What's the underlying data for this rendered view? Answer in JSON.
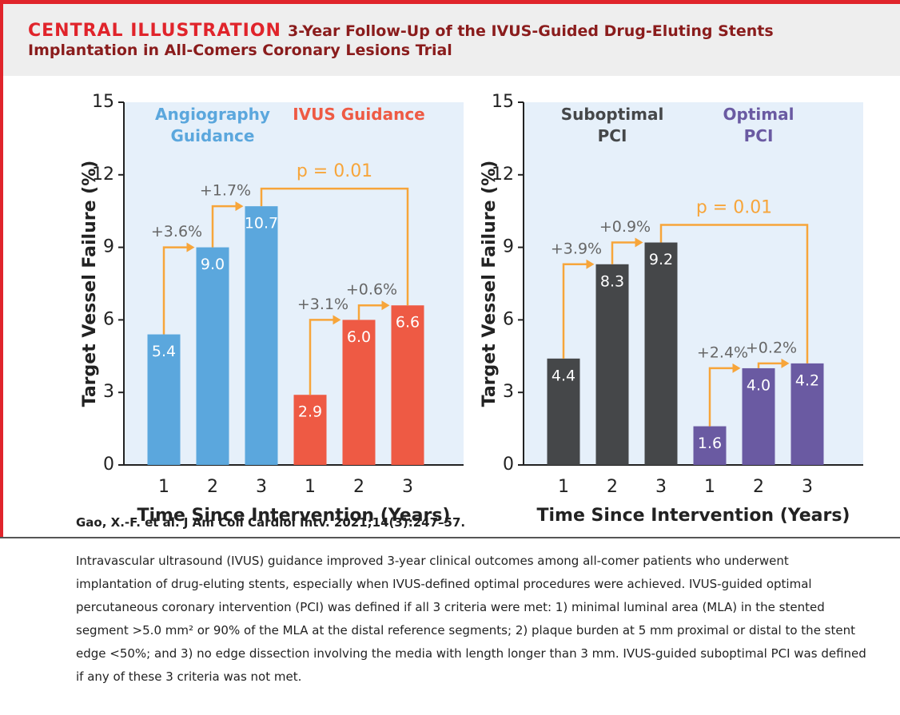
{
  "header": {
    "label": "CENTRAL ILLUSTRATION",
    "title": "3-Year Follow-Up of the IVUS-Guided Drug-Eluting Stents Implantation in All-Comers Coronary Lesions Trial"
  },
  "chart_data": [
    {
      "type": "bar",
      "y_label": "Target Vessel Failure (%)",
      "x_label": "Time Since Intervention (Years)",
      "categories": [
        "1",
        "2",
        "3",
        "1",
        "2",
        "3"
      ],
      "series": [
        {
          "name": "Angiography Guidance",
          "color": "#5ba7dd",
          "values": [
            5.4,
            9.0,
            10.7,
            null,
            null,
            null
          ],
          "value_labels": [
            "5.4",
            "9.0",
            "10.7",
            null,
            null,
            null
          ]
        },
        {
          "name": "IVUS Guidance",
          "color": "#ee5a44",
          "values": [
            null,
            null,
            null,
            2.9,
            6.0,
            6.6
          ],
          "value_labels": [
            null,
            null,
            null,
            "2.9",
            "6.0",
            "6.6"
          ]
        }
      ],
      "ylim": [
        0,
        15
      ],
      "yticks": [
        0,
        3,
        6,
        9,
        12,
        15
      ],
      "increments": [
        "+3.6%",
        "+1.7%",
        "+3.1%",
        "+0.6%"
      ],
      "p_value": "p = 0.01",
      "annotation_color": "#f7a53a",
      "background": "#e6f0fa"
    },
    {
      "type": "bar",
      "y_label": "Target Vessel Failure (%)",
      "x_label": "Time Since Intervention (Years)",
      "categories": [
        "1",
        "2",
        "3",
        "1",
        "2",
        "3"
      ],
      "series": [
        {
          "name": "Suboptimal PCI",
          "color": "#454749",
          "values": [
            4.4,
            8.3,
            9.2,
            null,
            null,
            null
          ],
          "value_labels": [
            "4.4",
            "8.3",
            "9.2",
            null,
            null,
            null
          ]
        },
        {
          "name": "Optimal PCI",
          "color": "#6a5aa2",
          "values": [
            null,
            null,
            null,
            1.6,
            4.0,
            4.2
          ],
          "value_labels": [
            null,
            null,
            null,
            "1.6",
            "4.0",
            "4.2"
          ]
        }
      ],
      "ylim": [
        0,
        15
      ],
      "yticks": [
        0,
        3,
        6,
        9,
        12,
        15
      ],
      "increments": [
        "+3.9%",
        "+0.9%",
        "+2.4%",
        "+0.2%"
      ],
      "p_value": "p = 0.01",
      "annotation_color": "#f7a53a",
      "background": "#e6f0fa"
    }
  ],
  "citation": "Gao, X.-F. et al. J Am Coll Cardiol Intv. 2021;14(3):247–57.",
  "caption": "Intravascular ultrasound (IVUS) guidance improved 3-year clinical outcomes among all-comer patients who underwent implantation of drug-eluting stents, especially when IVUS-defined optimal procedures were achieved. IVUS-guided optimal percutaneous coronary intervention (PCI) was defined if all 3 criteria were met: 1) minimal luminal area (MLA) in the stented segment >5.0 mm² or 90% of the MLA at the distal reference segments; 2) plaque burden at 5 mm proximal or distal to the stent edge <50%; and 3) no edge dissection involving the media with length longer than 3 mm. IVUS-guided suboptimal PCI was defined if any of these 3 criteria was not met."
}
